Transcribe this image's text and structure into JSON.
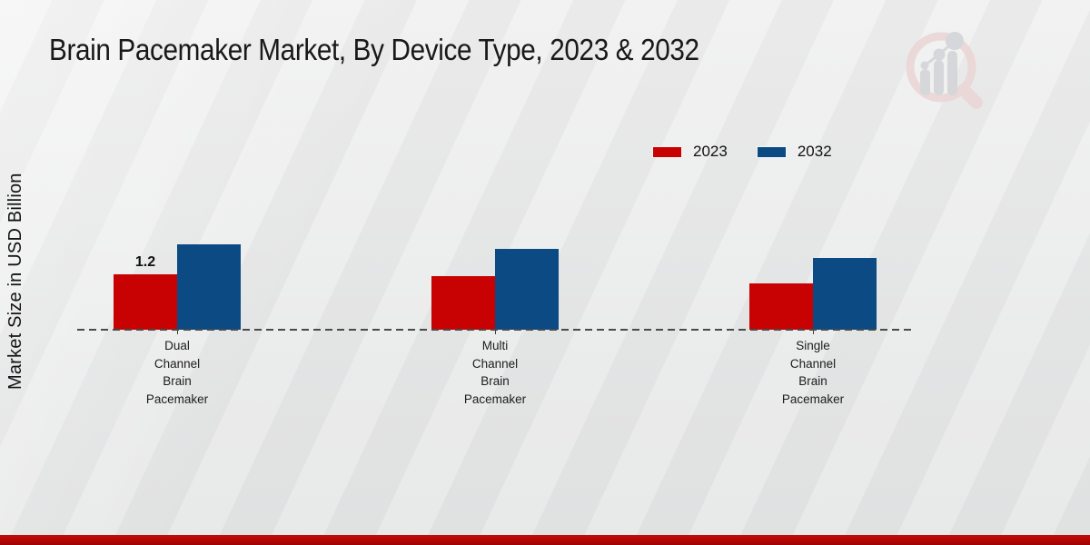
{
  "chart_data": {
    "type": "bar",
    "title": "Brain Pacemaker Market, By Device Type, 2023 & 2032",
    "ylabel": "Market Size in USD Billion",
    "xlabel": "",
    "categories": [
      "Dual Channel Brain Pacemaker",
      "Multi Channel Brain Pacemaker",
      "Single Channel Brain Pacemaker"
    ],
    "series": [
      {
        "name": "2023",
        "color": "#c80202",
        "values": [
          1.2,
          1.15,
          1.0
        ]
      },
      {
        "name": "2032",
        "color": "#0c4a83",
        "values": [
          1.85,
          1.75,
          1.55
        ]
      }
    ],
    "value_labels": [
      {
        "series_index": 0,
        "category_index": 0,
        "text": "1.2"
      }
    ],
    "ylim": [
      0,
      2.3
    ],
    "grid": false,
    "legend_position": "upper-right",
    "baseline_style": "dashed"
  },
  "icons": {
    "logo": "magnifier-bar-chart-watermark"
  },
  "colors": {
    "baseline": "#4a4a4a",
    "bottom_accent": "#b10606",
    "background": "#e9eaea",
    "logo_ring": "#ead7d6",
    "logo_bars": "#d4d5d8"
  }
}
